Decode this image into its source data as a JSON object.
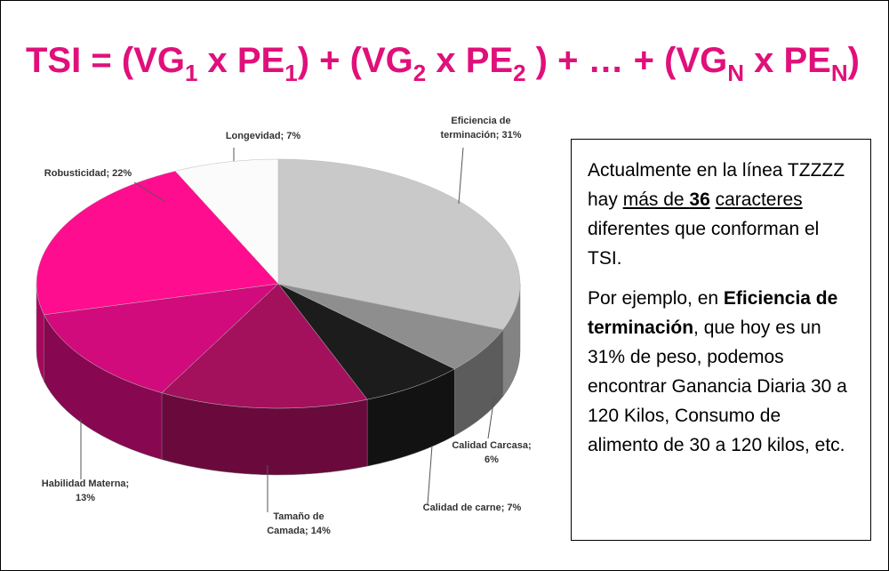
{
  "title_parts": [
    "TSI = (VG",
    "1",
    " x PE",
    "1",
    ") + (VG",
    "2",
    " x PE",
    "2",
    " ) + … + (VG",
    "N",
    " x PE",
    "N",
    ")"
  ],
  "chart_data": {
    "type": "pie3d",
    "value_labels": [
      "Eficiencia de\nterminación; 31%",
      "Calidad Carcasa;\n6%",
      "Calidad de carne; 7%",
      "Tamaño de\nCamada; 14%",
      "Habilidad Materna;\n13%",
      "Robusticidad; 22%",
      "Longevidad; 7%"
    ],
    "values": [
      31,
      6,
      7,
      14,
      13,
      22,
      7
    ],
    "colors": [
      "#c9c9c9",
      "#8e8e8e",
      "#1c1c1c",
      "#a3105c",
      "#d10b7c",
      "#ff0d8f",
      "#fbfbfb"
    ]
  },
  "text_box": {
    "paragraphs": [
      [
        {
          "text": "Actualmente en la línea TZZZZ hay "
        },
        {
          "text": "más de ",
          "underline": true
        },
        {
          "text": "36",
          "bold": true,
          "underline": true
        },
        {
          "text": " "
        },
        {
          "text": "caracteres",
          "underline": true
        },
        {
          "text": " diferentes que conforman el TSI."
        }
      ],
      [
        {
          "text": "Por ejemplo, en "
        },
        {
          "text": "Eficiencia de terminación",
          "bold": true
        },
        {
          "text": ", que hoy es un 31% de peso, podemos encontrar Ganancia Diaria 30 a 120 Kilos, Consumo de alimento de 30 a 120 kilos, etc."
        }
      ]
    ]
  }
}
